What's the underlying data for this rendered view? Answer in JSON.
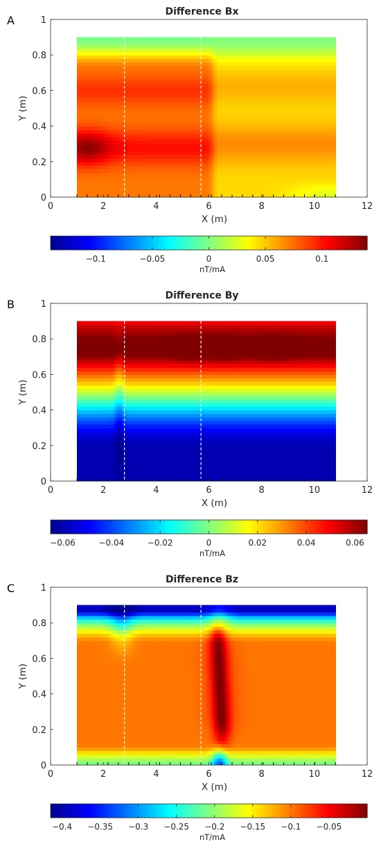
{
  "colors": {
    "jet": [
      "#00008f",
      "#0000ff",
      "#0080ff",
      "#00ffff",
      "#80ff80",
      "#ffff00",
      "#ff8000",
      "#ff0000",
      "#800000"
    ],
    "axis": "#262626",
    "guide_lines": "#ffffff"
  },
  "chart_data": [
    {
      "type": "heatmap",
      "panel_label": "A",
      "title": "Difference Bx",
      "xlabel": "X (m)",
      "ylabel": "Y (m)",
      "xlim": [
        0,
        12
      ],
      "ylim": [
        0,
        1
      ],
      "xticks": [
        "0",
        "2",
        "4",
        "6",
        "8",
        "10",
        "12"
      ],
      "yticks": [
        "0",
        "0.2",
        "0.4",
        "0.6",
        "0.8",
        "1"
      ],
      "data_extent": {
        "x": [
          1,
          10.8
        ],
        "y": [
          0,
          0.9
        ]
      },
      "dashed_lines_x": [
        2.8,
        5.7
      ],
      "field": "bx",
      "colorbar": {
        "label": "nT/mA",
        "range": [
          -0.14,
          0.14
        ],
        "ticks": [
          -0.1,
          -0.05,
          0,
          0.05,
          0.1
        ],
        "tick_labels": [
          "−0.1",
          "−0.05",
          "0",
          "0.05",
          "0.1"
        ]
      }
    },
    {
      "type": "heatmap",
      "panel_label": "B",
      "title": "Difference By",
      "xlabel": "X (m)",
      "ylabel": "Y (m)",
      "xlim": [
        0,
        12
      ],
      "ylim": [
        0,
        1
      ],
      "xticks": [
        "0",
        "2",
        "4",
        "6",
        "8",
        "10",
        "12"
      ],
      "yticks": [
        "0",
        "0.2",
        "0.4",
        "0.6",
        "0.8",
        "1"
      ],
      "data_extent": {
        "x": [
          1,
          10.8
        ],
        "y": [
          0,
          0.9
        ]
      },
      "dashed_lines_x": [
        2.8,
        5.7
      ],
      "field": "by",
      "colorbar": {
        "label": "nT/mA",
        "range": [
          -0.065,
          0.065
        ],
        "ticks": [
          -0.06,
          -0.04,
          -0.02,
          0,
          0.02,
          0.04,
          0.06
        ],
        "tick_labels": [
          "−0.06",
          "−0.04",
          "−0.02",
          "0",
          "0.02",
          "0.04",
          "0.06"
        ]
      }
    },
    {
      "type": "heatmap",
      "panel_label": "C",
      "title": "Difference Bz",
      "xlabel": "X (m)",
      "ylabel": "Y (m)",
      "xlim": [
        0,
        12
      ],
      "ylim": [
        0,
        1
      ],
      "xticks": [
        "0",
        "2",
        "4",
        "6",
        "8",
        "10",
        "12"
      ],
      "yticks": [
        "0",
        "0.2",
        "0.4",
        "0.6",
        "0.8",
        "1"
      ],
      "data_extent": {
        "x": [
          1,
          10.8
        ],
        "y": [
          0,
          0.9
        ]
      },
      "dashed_lines_x": [
        2.8,
        5.7
      ],
      "field": "bz",
      "colorbar": {
        "label": "nT/mA",
        "range": [
          -0.415,
          0.0
        ],
        "ticks": [
          -0.4,
          -0.35,
          -0.3,
          -0.25,
          -0.2,
          -0.15,
          -0.1,
          -0.05
        ],
        "tick_labels": [
          "−0.4",
          "−0.35",
          "−0.3",
          "−0.25",
          "−0.2",
          "−0.15",
          "−0.1",
          "−0.05"
        ]
      }
    }
  ]
}
